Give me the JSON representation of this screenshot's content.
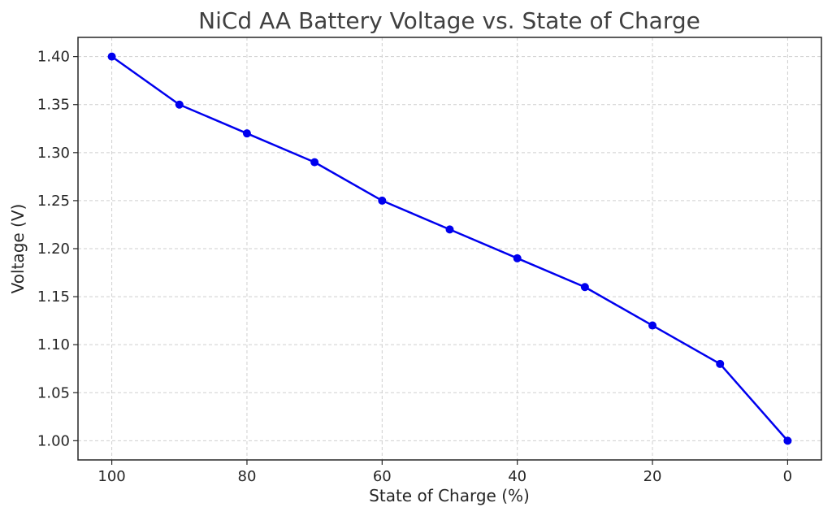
{
  "chart_data": {
    "type": "line",
    "title": "NiCd AA Battery Voltage vs. State of Charge",
    "xlabel": "State of Charge (%)",
    "ylabel": "Voltage (V)",
    "x": [
      100,
      90,
      80,
      70,
      60,
      50,
      40,
      30,
      20,
      10,
      0
    ],
    "series": [
      {
        "values": [
          1.4,
          1.35,
          1.32,
          1.29,
          1.25,
          1.22,
          1.19,
          1.16,
          1.12,
          1.08,
          1.0
        ],
        "color": "#0000ee"
      }
    ],
    "xlim": [
      105,
      -5
    ],
    "ylim": [
      0.98,
      1.42
    ],
    "x_axis_inverted": true,
    "x_ticks": [
      "100",
      "80",
      "60",
      "40",
      "20",
      "0"
    ],
    "y_ticks": [
      "1.00",
      "1.05",
      "1.10",
      "1.15",
      "1.20",
      "1.25",
      "1.30",
      "1.35",
      "1.40"
    ],
    "grid": true,
    "marker": "circle"
  }
}
